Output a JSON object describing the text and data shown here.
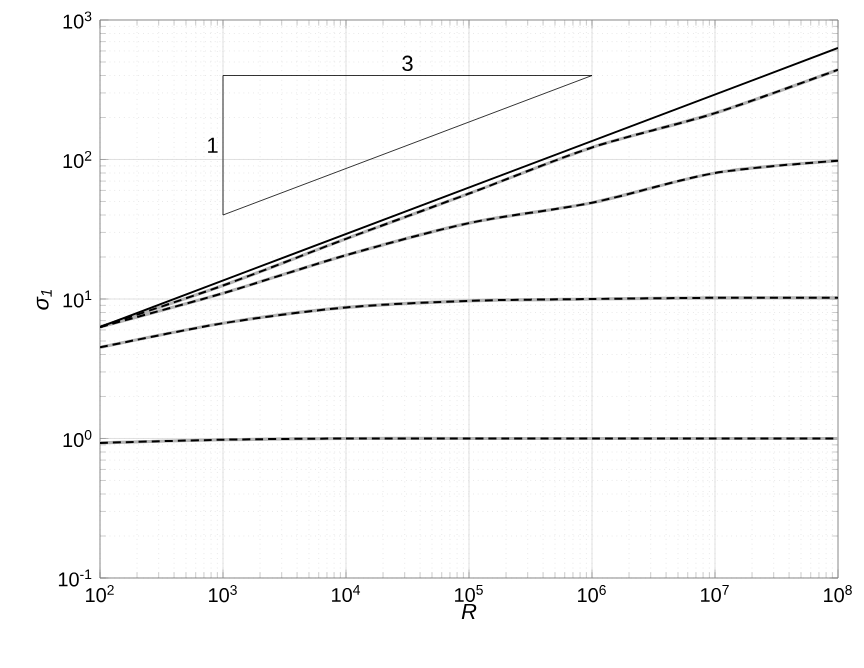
{
  "chart_data": {
    "type": "line",
    "xlabel": "R",
    "ylabel": "σ$_{1}$",
    "log": "xy",
    "grid": true,
    "marker": "none",
    "xlim": [
      100,
      100000000
    ],
    "ylim": [
      0.1,
      1000
    ],
    "xticks": [
      {
        "value": 100,
        "label": "10$^{2}$"
      },
      {
        "value": 1000,
        "label": "10$^{3}$"
      },
      {
        "value": 10000,
        "label": "10$^{4}$"
      },
      {
        "value": 100000,
        "label": "10$^{5}$"
      },
      {
        "value": 1000000,
        "label": "10$^{6}$"
      },
      {
        "value": 10000000,
        "label": "10$^{7}$"
      },
      {
        "value": 100000000,
        "label": "10$^{8}$"
      }
    ],
    "yticks": [
      {
        "value": 0.1,
        "label": "10$^{-1}$"
      },
      {
        "value": 1,
        "label": "10$^{0}$"
      },
      {
        "value": 10,
        "label": "10$^{1}$"
      },
      {
        "value": 100,
        "label": "10$^{2}$"
      },
      {
        "value": 1000,
        "label": "10$^{3}$"
      }
    ],
    "x": [
      100,
      1000,
      10000,
      100000,
      1000000,
      10000000,
      100000000
    ],
    "series": [
      {
        "color": "#b4b4b4",
        "line_style": "solid",
        "values": [
          6.3,
          12.5,
          27,
          57,
          122,
          215,
          440
        ]
      },
      {
        "color": "#b4b4b4",
        "line_style": "solid",
        "values": [
          6.3,
          11,
          20.6,
          35,
          49,
          80,
          98
        ]
      },
      {
        "color": "#b4b4b4",
        "line_style": "solid",
        "values": [
          4.5,
          6.7,
          8.7,
          9.7,
          10,
          10.2,
          10.2
        ]
      },
      {
        "color": "#b4b4b4",
        "line_style": "solid",
        "values": [
          0.93,
          0.98,
          1,
          1,
          1,
          1,
          1
        ]
      },
      {
        "color": "#000000",
        "line_style": "dashed",
        "values": [
          6.3,
          12.5,
          27,
          57,
          122,
          215,
          440
        ]
      },
      {
        "color": "#000000",
        "line_style": "dashed",
        "values": [
          6.3,
          11,
          20.6,
          35,
          49,
          80,
          98
        ]
      },
      {
        "color": "#000000",
        "line_style": "dashed",
        "values": [
          4.5,
          6.7,
          8.7,
          9.7,
          10,
          10.2,
          10.2
        ]
      },
      {
        "color": "#000000",
        "line_style": "dashed",
        "values": [
          0.93,
          0.98,
          1,
          1,
          1,
          1,
          1
        ]
      },
      {
        "color": "#000000",
        "line_style": "solid",
        "x": [
          100,
          100000000
        ],
        "values": [
          6.3,
          630
        ]
      },
      {
        "color": "#000000",
        "line_style": "solid",
        "x": [
          1000,
          1000000
        ],
        "values": [
          40,
          400
        ]
      },
      {
        "color": "#000000",
        "line_style": "solid",
        "x": [
          1000,
          1000
        ],
        "values": [
          40,
          400
        ]
      },
      {
        "color": "#000000",
        "line_style": "solid",
        "x": [
          1000,
          1000000
        ],
        "values": [
          400,
          400
        ]
      }
    ],
    "annotations": [
      "1",
      "3"
    ]
  }
}
